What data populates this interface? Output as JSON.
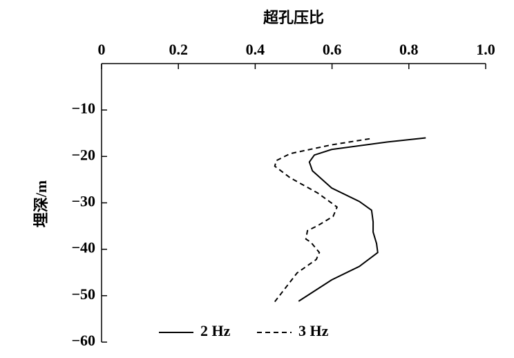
{
  "chart_data": {
    "type": "line",
    "title": "超孔压比",
    "ylabel": "埋深/m",
    "xlim": [
      0,
      1
    ],
    "xticks": [
      0,
      0.2,
      0.4,
      0.6,
      0.8,
      {
        "value": 1,
        "label": "1.0"
      }
    ],
    "ylim": [
      -60,
      0
    ],
    "yticks": [
      {
        "value": -10,
        "label": "−10"
      },
      {
        "value": -20,
        "label": "−20"
      },
      {
        "value": -30,
        "label": "−30"
      },
      {
        "value": -40,
        "label": "−40"
      },
      {
        "value": -50,
        "label": "−50"
      },
      {
        "value": -60,
        "label": "−60"
      }
    ],
    "legend": "bottom",
    "series": [
      {
        "name": "2 Hz",
        "color": "#000000",
        "style": "solid",
        "x": [
          0.844,
          0.743,
          0.599,
          0.554,
          0.541,
          0.549,
          0.599,
          0.671,
          0.703,
          0.707,
          0.707,
          0.716,
          0.719,
          0.671,
          0.599,
          0.513
        ],
        "y": [
          -16.0,
          -16.9,
          -18.5,
          -19.7,
          -21.2,
          -23.1,
          -26.8,
          -29.7,
          -31.6,
          -34.1,
          -36.3,
          -38.8,
          -40.7,
          -43.7,
          -46.6,
          -51.2
        ]
      },
      {
        "name": "3 Hz",
        "color": "#000000",
        "style": "dashed",
        "x": [
          0.698,
          0.599,
          0.491,
          0.455,
          0.451,
          0.491,
          0.563,
          0.613,
          0.603,
          0.563,
          0.536,
          0.532,
          0.545,
          0.567,
          0.559,
          0.509,
          0.451
        ],
        "y": [
          -16.2,
          -17.5,
          -19.4,
          -20.9,
          -22.1,
          -24.6,
          -27.9,
          -30.9,
          -32.9,
          -34.9,
          -36.0,
          -37.8,
          -38.5,
          -40.7,
          -42.2,
          -45.1,
          -51.3
        ]
      }
    ]
  }
}
